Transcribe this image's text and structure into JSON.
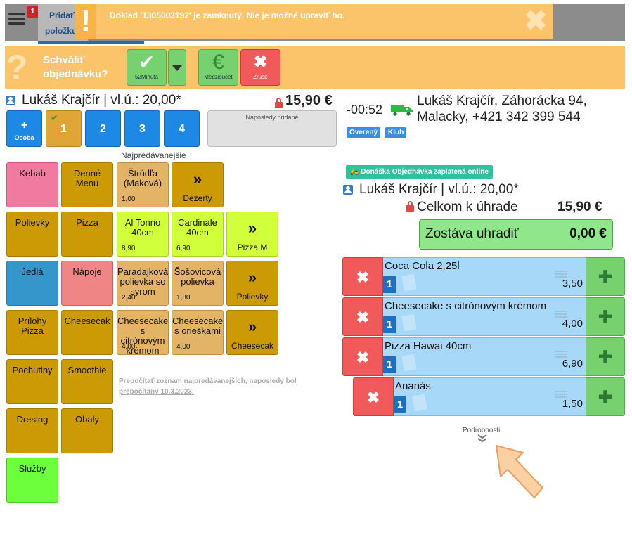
{
  "topbar": {
    "notification_count": "1",
    "add_items_line1": "Pridať",
    "add_items_line2": "položku"
  },
  "lock_notice": {
    "text": "Doklad '1305003192' je zamknutý. Nie je možné upraviť ho.",
    "icon": "exclamation-icon",
    "close_icon": "close-icon"
  },
  "approve_bar": {
    "label_line1": "Schváliť",
    "label_line2": "objednávku?",
    "approve_button_label": "52Minúta",
    "subtotal_button_label": "Medzisúčet",
    "cancel_button_label": "Zrušiť"
  },
  "left": {
    "customer": "Lukáš Krajčír | vl.ú.: 20,00*",
    "total": "15,90 €",
    "person_tabs": [
      {
        "label": "+",
        "sublabel": "Osoba"
      },
      {
        "label": "1"
      },
      {
        "label": "2"
      },
      {
        "label": "3"
      },
      {
        "label": "4"
      }
    ],
    "recent_label": "Naposledy pridané",
    "bestsellers_label": "Najpredávanejšie",
    "categories": [
      "Kebab",
      "Denné Menu",
      "Polievky",
      "Pizza",
      "Jedlá",
      "Nápoje",
      "Prílohy Pizza",
      "Cheesecak",
      "Pochutiny",
      "Smoothie",
      "Dresing",
      "Obaly",
      "Služby"
    ],
    "bestsellers": [
      {
        "name": "Štrúdľa (Maková)",
        "price": "1,00"
      },
      {
        "name": "Al Tonno 40cm",
        "price": "8,90"
      },
      {
        "name": "Cardinale 40cm",
        "price": "6,90"
      },
      {
        "name": "Paradajková polievka so syrom",
        "price": "2,40"
      },
      {
        "name": "Šošovicová polievka",
        "price": "1,80"
      },
      {
        "name": "Cheesecake s citrónovým krémom",
        "price": "4,00"
      },
      {
        "name": "Cheesecake s orieškami",
        "price": "4,00"
      }
    ],
    "more_buttons": [
      "Dezerty",
      "Pizza M",
      "Polievky",
      "Cheesecak"
    ],
    "more_icon": "»",
    "recalc_note": "Prepočítať zoznam najpredávanejších, naposledy bol prepočítaný 10.3.2023."
  },
  "right": {
    "time": "-00:52",
    "truck_icon": "delivery-truck-icon",
    "address_line1": "Lukáš Krajčír, Záhorácka 94,",
    "address_line2_prefix": "Malacky, ",
    "phone": "+421 342 399 544",
    "badge_verified": "Overený",
    "badge_club": "Klub",
    "delivery_badge": "Donáška Objednávka zaplatená online",
    "customer": "Lukáš Krajčír | vl.ú.: 20,00*",
    "total_label": "Celkom k úhrade",
    "total_value": "15,90 €",
    "remaining_label": "Zostáva uhradiť",
    "remaining_value": "0,00 €",
    "items": [
      {
        "name": "Coca Cola 2,25l",
        "qty": "1",
        "price": "3,50"
      },
      {
        "name": "Cheesecake s citrónovým krémom",
        "qty": "1",
        "price": "4,00"
      },
      {
        "name": "Pizza Hawai 40cm",
        "qty": "1",
        "price": "6,90"
      },
      {
        "name": "Ananás",
        "qty": "1",
        "price": "1,50"
      }
    ],
    "details_label": "Podrobnosti"
  },
  "colors": {
    "accent_orange": "#fcc46a",
    "accent_green": "#78d16f",
    "accent_red": "#f05a5a",
    "item_blue": "#a7d8f7"
  }
}
